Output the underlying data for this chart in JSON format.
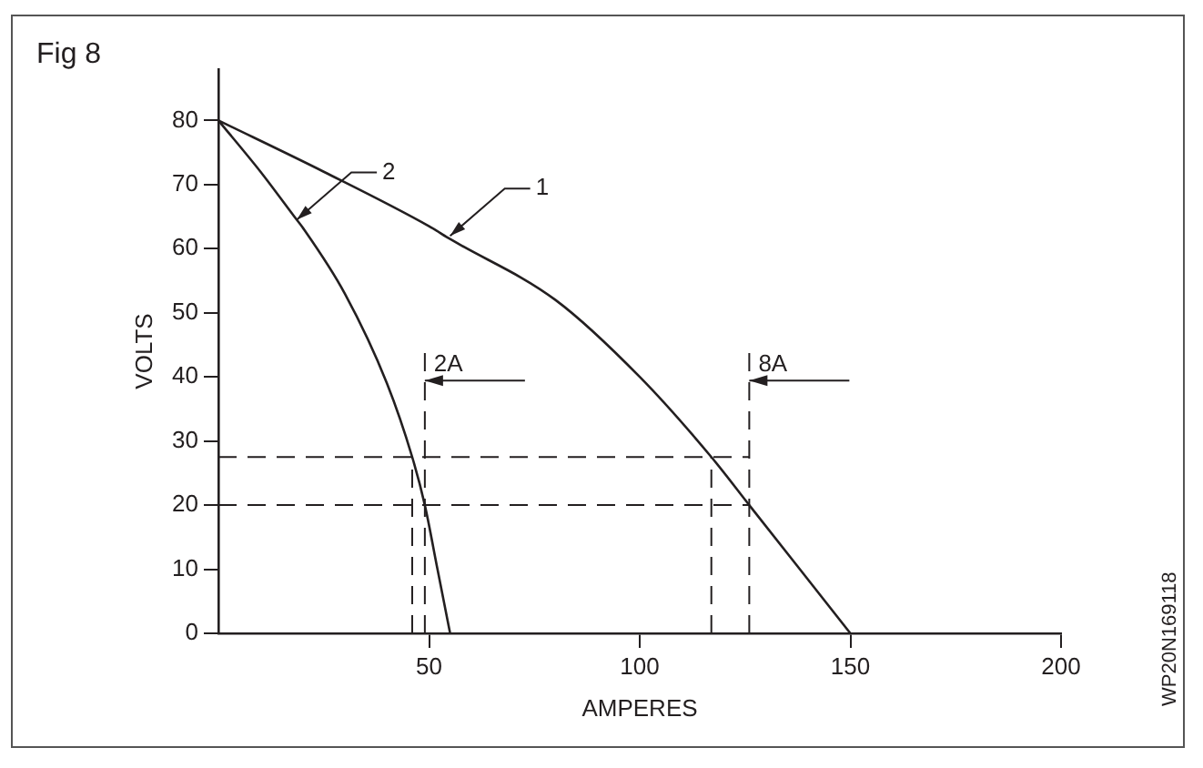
{
  "chart_data": {
    "type": "line",
    "title": "Fig 8",
    "xlabel": "AMPERES",
    "ylabel": "VOLTS",
    "xlim": [
      0,
      200
    ],
    "xticks": [
      50,
      100,
      150,
      200
    ],
    "ylim": [
      0,
      88
    ],
    "yticks": [
      0,
      10,
      20,
      30,
      40,
      50,
      60,
      70,
      80
    ],
    "grid": false,
    "legend": false,
    "marker": "none",
    "line_style": "solid",
    "series": [
      {
        "color": "#231f20",
        "x": [
          0,
          25,
          50,
          55,
          80,
          100,
          117,
          126,
          150
        ],
        "values": [
          80,
          72,
          63.5,
          61.5,
          52,
          40,
          27.5,
          20,
          0
        ]
      },
      {
        "color": "#231f20",
        "x": [
          0,
          10,
          18.6,
          20,
          30,
          40,
          46,
          49,
          52,
          55
        ],
        "values": [
          80,
          72,
          64.5,
          63.3,
          53,
          39,
          27.5,
          20,
          10,
          0
        ]
      }
    ],
    "ref_lines": [
      {
        "axis": "y",
        "value": 27.5,
        "line_style": "dashed",
        "color": "#231f20"
      },
      {
        "axis": "y",
        "value": 20,
        "line_style": "dashed",
        "color": "#231f20"
      },
      {
        "axis": "x",
        "value": 46,
        "line_style": "dashed",
        "color": "#231f20"
      },
      {
        "axis": "x",
        "value": 49,
        "line_style": "dashed",
        "color": "#231f20",
        "label": "2A"
      },
      {
        "axis": "x",
        "value": 117,
        "line_style": "dashed",
        "color": "#231f20"
      },
      {
        "axis": "x",
        "value": 126,
        "line_style": "dashed",
        "color": "#231f20",
        "label": "8A"
      }
    ],
    "annotations": [
      {
        "text": "1",
        "x": 55,
        "y": 62
      },
      {
        "text": "2",
        "x": 18.6,
        "y": 64.5
      },
      "WP20N169118"
    ]
  }
}
